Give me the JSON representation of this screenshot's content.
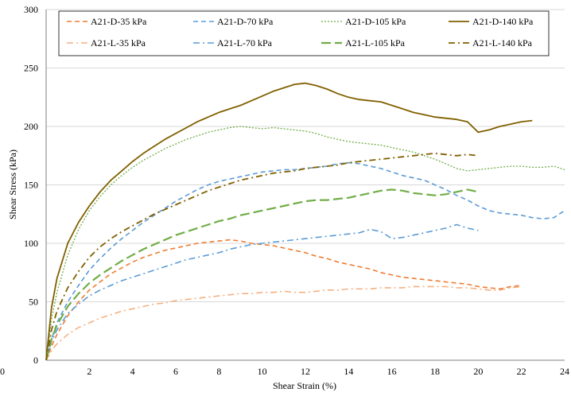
{
  "chart_data": {
    "type": "line",
    "title": "",
    "xlabel": "Shear Strain (%)",
    "ylabel": "Shear Stress (kPa)",
    "xlim": [
      0,
      24
    ],
    "ylim": [
      0,
      300
    ],
    "xticks": [
      0,
      2,
      4,
      6,
      8,
      10,
      12,
      14,
      16,
      18,
      20,
      22,
      24
    ],
    "yticks": [
      0,
      50,
      100,
      150,
      200,
      250,
      300
    ],
    "x_tick_labels": [
      "0",
      "2",
      "4",
      "6",
      "8",
      "10",
      "12",
      "14",
      "16",
      "18",
      "20",
      "22",
      "24"
    ],
    "y_tick_labels": [
      "0",
      "50",
      "100",
      "150",
      "200",
      "250",
      "300"
    ],
    "grid": "horizontal",
    "legend": "top, inside, 4 columns",
    "series": [
      {
        "name": "A21-D-35 kPa",
        "color": "#ED7D31",
        "dash": "dash",
        "width": 1.6,
        "x": [
          0,
          0.25,
          0.5,
          1,
          1.5,
          2,
          2.5,
          3,
          3.5,
          4,
          4.5,
          5,
          5.5,
          6,
          6.5,
          7,
          7.5,
          8,
          8.5,
          9,
          9.5,
          10,
          10.5,
          11,
          11.5,
          12,
          12.5,
          13,
          13.5,
          14,
          14.5,
          15,
          15.5,
          16,
          16.5,
          17,
          17.5,
          18,
          18.5,
          19,
          19.5,
          20,
          20.5,
          21,
          21.5,
          22
        ],
        "y": [
          0,
          12,
          22,
          38,
          50,
          60,
          67,
          74,
          79,
          84,
          88,
          91,
          94,
          96,
          98,
          100,
          101,
          102,
          103,
          102,
          100,
          99,
          98,
          96,
          94,
          92,
          89,
          87,
          84,
          82,
          80,
          78,
          75,
          73,
          71,
          70,
          69,
          68,
          67,
          66,
          65,
          63,
          62,
          61,
          63,
          64
        ]
      },
      {
        "name": "A21-D-70 kPa",
        "color": "#5B9BD5",
        "dash": "dash",
        "width": 1.6,
        "x": [
          0,
          0.25,
          0.5,
          1,
          1.5,
          2,
          2.5,
          3,
          3.5,
          4,
          4.5,
          5,
          5.5,
          6,
          6.5,
          7,
          7.5,
          8,
          8.5,
          9,
          9.5,
          10,
          10.5,
          11,
          11.5,
          12,
          12.5,
          13,
          13.5,
          14,
          14.5,
          15,
          15.5,
          16,
          16.5,
          17,
          17.5,
          18,
          18.5,
          19,
          19.5,
          20,
          20.5,
          21,
          21.5,
          22,
          22.5,
          23,
          23.5,
          24
        ],
        "y": [
          0,
          18,
          32,
          50,
          64,
          77,
          87,
          96,
          104,
          111,
          118,
          124,
          130,
          136,
          141,
          146,
          150,
          153,
          155,
          157,
          159,
          161,
          162,
          163,
          163,
          164,
          165,
          166,
          168,
          169,
          168,
          166,
          164,
          161,
          158,
          156,
          154,
          150,
          146,
          141,
          137,
          132,
          128,
          126,
          125,
          124,
          122,
          121,
          122,
          128
        ]
      },
      {
        "name": "A21-D-105 kPa",
        "color": "#70AD47",
        "dash": "dot",
        "width": 1.3,
        "x": [
          0,
          0.25,
          0.5,
          1,
          1.5,
          2,
          2.5,
          3,
          3.5,
          4,
          4.5,
          5,
          5.5,
          6,
          6.5,
          7,
          7.5,
          8,
          8.5,
          9,
          9.5,
          10,
          10.5,
          11,
          11.5,
          12,
          12.5,
          13,
          13.5,
          14,
          14.5,
          15,
          15.5,
          16,
          16.5,
          17,
          17.5,
          18,
          18.5,
          19,
          19.5,
          20,
          20.5,
          21,
          21.5,
          22,
          22.5,
          23,
          23.5,
          24
        ],
        "y": [
          0,
          35,
          58,
          90,
          112,
          128,
          140,
          150,
          158,
          165,
          171,
          176,
          181,
          185,
          189,
          192,
          195,
          197,
          199,
          200,
          199,
          198,
          199,
          198,
          197,
          196,
          194,
          191,
          189,
          187,
          186,
          185,
          184,
          182,
          180,
          178,
          175,
          172,
          168,
          164,
          162,
          163,
          164,
          165,
          166,
          166,
          165,
          165,
          166,
          163
        ]
      },
      {
        "name": "A21-D-140 kPa",
        "color": "#806000",
        "dash": "solid",
        "width": 1.8,
        "x": [
          0,
          0.25,
          0.5,
          1,
          1.5,
          2,
          2.5,
          3,
          3.5,
          4,
          4.5,
          5,
          5.5,
          6,
          6.5,
          7,
          7.5,
          8,
          8.5,
          9,
          9.5,
          10,
          10.5,
          11,
          11.5,
          12,
          12.5,
          13,
          13.5,
          14,
          14.5,
          15,
          15.5,
          16,
          16.5,
          17,
          17.5,
          18,
          18.5,
          19,
          19.5,
          20,
          20.5,
          21,
          21.5,
          22,
          22.5
        ],
        "y": [
          0,
          45,
          70,
          100,
          118,
          132,
          144,
          154,
          162,
          170,
          177,
          183,
          189,
          194,
          199,
          204,
          208,
          212,
          215,
          218,
          222,
          226,
          230,
          233,
          236,
          237,
          235,
          232,
          228,
          225,
          223,
          222,
          221,
          218,
          215,
          212,
          210,
          208,
          207,
          206,
          204,
          195,
          197,
          200,
          202,
          204,
          205
        ]
      },
      {
        "name": "A21-L-35 kPa",
        "color": "#F4B183",
        "dash": "dashdot",
        "width": 1.6,
        "x": [
          0,
          0.25,
          0.5,
          1,
          1.5,
          2,
          2.5,
          3,
          3.5,
          4,
          4.5,
          5,
          5.5,
          6,
          6.5,
          7,
          7.5,
          8,
          8.5,
          9,
          9.5,
          10,
          10.5,
          11,
          11.5,
          12,
          12.5,
          13,
          13.5,
          14,
          14.5,
          15,
          15.5,
          16,
          16.5,
          17,
          17.5,
          18,
          18.5,
          19,
          19.5,
          20,
          20.5,
          21,
          21.5,
          22
        ],
        "y": [
          0,
          8,
          14,
          22,
          28,
          32,
          36,
          39,
          42,
          44,
          46,
          48,
          49,
          51,
          52,
          53,
          54,
          55,
          56,
          57,
          57,
          58,
          58,
          59,
          58,
          58,
          59,
          60,
          60,
          61,
          61,
          61,
          62,
          62,
          62,
          63,
          63,
          63,
          63,
          62,
          62,
          61,
          60,
          60,
          62,
          63
        ]
      },
      {
        "name": "A21-L-70 kPa",
        "color": "#5B9BD5",
        "dash": "dashdot",
        "width": 1.6,
        "x": [
          0,
          0.25,
          0.5,
          1,
          1.5,
          2,
          2.5,
          3,
          3.5,
          4,
          4.5,
          5,
          5.5,
          6,
          6.5,
          7,
          7.5,
          8,
          8.5,
          9,
          9.5,
          10,
          10.5,
          11,
          11.5,
          12,
          12.5,
          13,
          13.5,
          14,
          14.5,
          15,
          15.5,
          16,
          16.5,
          17,
          17.5,
          18,
          18.5,
          19,
          19.5,
          20
        ],
        "y": [
          0,
          16,
          26,
          40,
          48,
          55,
          60,
          64,
          68,
          71,
          74,
          77,
          80,
          83,
          86,
          88,
          90,
          92,
          95,
          97,
          99,
          100,
          101,
          102,
          103,
          104,
          105,
          106,
          107,
          108,
          109,
          112,
          110,
          104,
          105,
          107,
          109,
          111,
          113,
          116,
          113,
          111
        ]
      },
      {
        "name": "A21-L-105 kPa",
        "color": "#70AD47",
        "dash": "longdash",
        "width": 2.2,
        "x": [
          0,
          0.25,
          0.5,
          1,
          1.5,
          2,
          2.5,
          3,
          3.5,
          4,
          4.5,
          5,
          5.5,
          6,
          6.5,
          7,
          7.5,
          8,
          8.5,
          9,
          9.5,
          10,
          10.5,
          11,
          11.5,
          12,
          12.5,
          13,
          13.5,
          14,
          14.5,
          15,
          15.5,
          16,
          16.5,
          17,
          17.5,
          18,
          18.5,
          19,
          19.5,
          20
        ],
        "y": [
          0,
          18,
          30,
          46,
          57,
          66,
          73,
          79,
          85,
          90,
          95,
          99,
          103,
          107,
          110,
          113,
          116,
          119,
          121,
          124,
          126,
          128,
          130,
          132,
          134,
          136,
          137,
          137,
          138,
          139,
          141,
          143,
          145,
          146,
          145,
          143,
          142,
          141,
          142,
          144,
          146,
          144
        ]
      },
      {
        "name": "A21-L-140 kPa",
        "color": "#806000",
        "dash": "dashdot",
        "width": 1.8,
        "x": [
          0,
          0.25,
          0.5,
          1,
          1.5,
          2,
          2.5,
          3,
          3.5,
          4,
          4.5,
          5,
          5.5,
          6,
          6.5,
          7,
          7.5,
          8,
          8.5,
          9,
          9.5,
          10,
          10.5,
          11,
          11.5,
          12,
          12.5,
          13,
          13.5,
          14,
          14.5,
          15,
          15.5,
          16,
          16.5,
          17,
          17.5,
          18,
          18.5,
          19,
          19.5,
          20
        ],
        "y": [
          0,
          26,
          42,
          62,
          76,
          88,
          97,
          104,
          110,
          115,
          120,
          125,
          129,
          133,
          137,
          141,
          145,
          148,
          151,
          154,
          156,
          158,
          160,
          161,
          162,
          164,
          165,
          166,
          167,
          169,
          170,
          171,
          172,
          173,
          174,
          175,
          176,
          177,
          176,
          175,
          176,
          175
        ]
      }
    ]
  }
}
